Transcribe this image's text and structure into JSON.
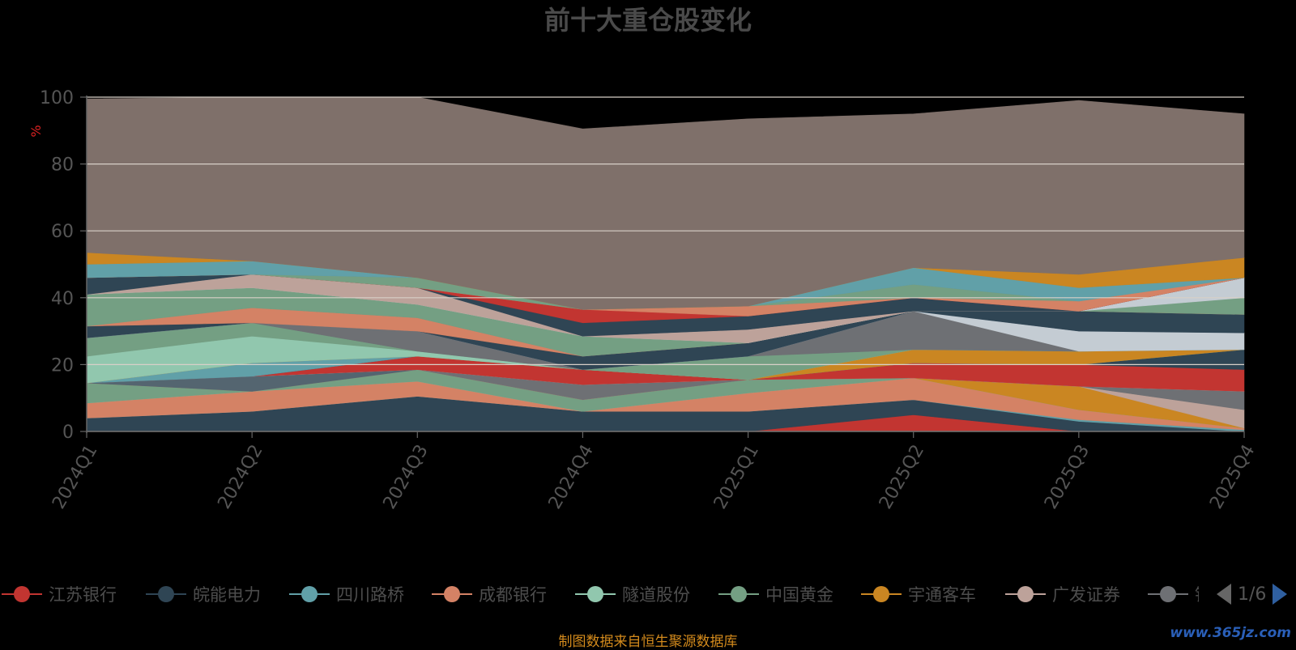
{
  "chart_data": {
    "type": "area",
    "title": "前十大重仓股变化",
    "ylabel": "%",
    "ylim": [
      0,
      100
    ],
    "yticks": [
      0,
      20,
      40,
      60,
      80,
      100
    ],
    "x": [
      "2024Q1",
      "2024Q2",
      "2024Q3",
      "2024Q4",
      "2025Q1",
      "2025Q2",
      "2025Q3",
      "2025Q4"
    ],
    "series": [
      {
        "name": "江苏银行",
        "color": "#c23531",
        "values": [
          0,
          0,
          0,
          0,
          0,
          5,
          0,
          0
        ]
      },
      {
        "name": "皖能电力",
        "color": "#2f4554",
        "values": [
          4,
          6,
          10.5,
          6,
          6,
          4.5,
          3,
          0
        ]
      },
      {
        "name": "四川路桥",
        "color": "#61a0a8",
        "values": [
          0,
          0,
          0,
          0,
          0,
          0,
          0.5,
          0.5
        ]
      },
      {
        "name": "成都银行",
        "color": "#d48265",
        "values": [
          4.5,
          6,
          4.5,
          0,
          5.5,
          6.5,
          3,
          0.5
        ]
      },
      {
        "name": "隧道股份",
        "color": "#91c7ae",
        "values": [
          0,
          0,
          0,
          0,
          0,
          0,
          0,
          0
        ]
      },
      {
        "name": "中国黄金",
        "color": "#749f83",
        "values": [
          6,
          0,
          3.5,
          3.5,
          4,
          0,
          0,
          0
        ]
      },
      {
        "name": "宇通客车",
        "color": "#ca8622",
        "values": [
          0,
          0,
          0,
          0,
          0,
          0,
          7,
          0
        ]
      },
      {
        "name": "广发证券",
        "color": "#bda29a",
        "values": [
          0,
          0,
          0,
          0,
          0,
          0,
          0,
          5.5
        ]
      },
      {
        "name": "银行",
        "color": "#6e7074",
        "values": [
          0,
          0,
          0,
          4.5,
          0,
          0,
          0,
          5.5
        ]
      },
      {
        "name": "",
        "color": "#546570",
        "values": [
          0,
          4.5,
          0,
          0,
          0,
          0,
          0,
          0
        ]
      },
      {
        "name": "",
        "color": "#c4ccd3",
        "values": [
          0,
          0,
          0,
          0,
          0,
          0,
          0,
          0
        ]
      },
      {
        "name": "",
        "color": "#c23531",
        "values": [
          0,
          0,
          4,
          4.5,
          0,
          4.5,
          6.5,
          6.5
        ]
      },
      {
        "name": "",
        "color": "#2f4554",
        "values": [
          0,
          0,
          0,
          0,
          0,
          0,
          0,
          6
        ]
      },
      {
        "name": "",
        "color": "#61a0a8",
        "values": [
          0,
          4,
          0,
          0,
          0,
          0,
          0,
          0
        ]
      },
      {
        "name": "",
        "color": "#ca8622",
        "values": [
          0,
          0,
          0,
          0,
          0,
          4,
          4,
          0
        ]
      },
      {
        "name": "",
        "color": "#91c7ae",
        "values": [
          8,
          8,
          1.5,
          0,
          0,
          0,
          0,
          0
        ]
      },
      {
        "name": "",
        "color": "#749f83",
        "values": [
          5.5,
          4,
          0,
          0,
          7,
          0,
          0,
          0
        ]
      },
      {
        "name": "",
        "color": "#6e7074",
        "values": [
          0,
          0,
          6,
          0,
          0,
          11.5,
          0,
          0
        ]
      },
      {
        "name": "",
        "color": "#c4ccd3",
        "values": [
          0,
          0,
          0,
          0,
          0,
          0,
          6,
          5
        ]
      },
      {
        "name": "",
        "color": "#2f4554",
        "values": [
          3.5,
          0,
          0,
          4,
          4,
          0,
          6,
          5.5
        ]
      },
      {
        "name": "",
        "color": "#d48265",
        "values": [
          0,
          4.5,
          4,
          0,
          0,
          0,
          0,
          0
        ]
      },
      {
        "name": "",
        "color": "#749f83",
        "values": [
          9.5,
          6,
          4,
          6,
          0,
          0,
          0,
          5
        ]
      },
      {
        "name": "",
        "color": "#c4ccd3",
        "values": [
          0,
          0,
          0,
          0,
          0,
          0,
          0,
          6
        ]
      },
      {
        "name": "",
        "color": "#bda29a",
        "values": [
          0,
          4,
          5,
          0,
          4,
          0,
          0,
          0
        ]
      },
      {
        "name": "",
        "color": "#2f4554",
        "values": [
          5,
          0,
          0,
          4,
          4,
          4,
          0,
          0
        ]
      },
      {
        "name": "",
        "color": "#c23531",
        "values": [
          0,
          0,
          0,
          4,
          0,
          0,
          0,
          0
        ]
      },
      {
        "name": "",
        "color": "#d48265",
        "values": [
          0,
          0,
          0,
          0,
          3,
          0,
          3,
          0
        ]
      },
      {
        "name": "",
        "color": "#749f83",
        "values": [
          0,
          0,
          3,
          0,
          0,
          4,
          0,
          0
        ]
      },
      {
        "name": "",
        "color": "#61a0a8",
        "values": [
          4,
          4,
          0,
          0,
          0,
          5,
          4,
          0
        ]
      },
      {
        "name": "",
        "color": "#ca8622",
        "values": [
          3.5,
          0,
          0,
          0,
          0,
          0,
          4,
          6
        ]
      },
      {
        "name": "",
        "color": "#7f706a",
        "values": [
          46,
          49,
          54,
          54,
          56,
          46,
          52,
          43
        ]
      }
    ]
  },
  "legend": {
    "items": [
      {
        "label": "江苏银行",
        "color": "#c23531",
        "icon": "circle-line-icon"
      },
      {
        "label": "皖能电力",
        "color": "#2f4554",
        "icon": "circle-line-icon"
      },
      {
        "label": "四川路桥",
        "color": "#61a0a8",
        "icon": "circle-line-icon"
      },
      {
        "label": "成都银行",
        "color": "#d48265",
        "icon": "circle-line-icon"
      },
      {
        "label": "隧道股份",
        "color": "#91c7ae",
        "icon": "circle-line-icon"
      },
      {
        "label": "中国黄金",
        "color": "#749f83",
        "icon": "circle-line-icon"
      },
      {
        "label": "宇通客车",
        "color": "#ca8622",
        "icon": "circle-line-icon"
      },
      {
        "label": "广发证券",
        "color": "#bda29a",
        "icon": "circle-line-icon"
      },
      {
        "label": "银行",
        "color": "#6e7074",
        "icon": "circle-line-icon"
      }
    ],
    "page": "1/6",
    "prev_icon": "triangle-left-icon",
    "next_icon": "triangle-right-icon"
  },
  "source_text": "制图数据来自恒生聚源数据库",
  "watermark": "www.365jz.com"
}
